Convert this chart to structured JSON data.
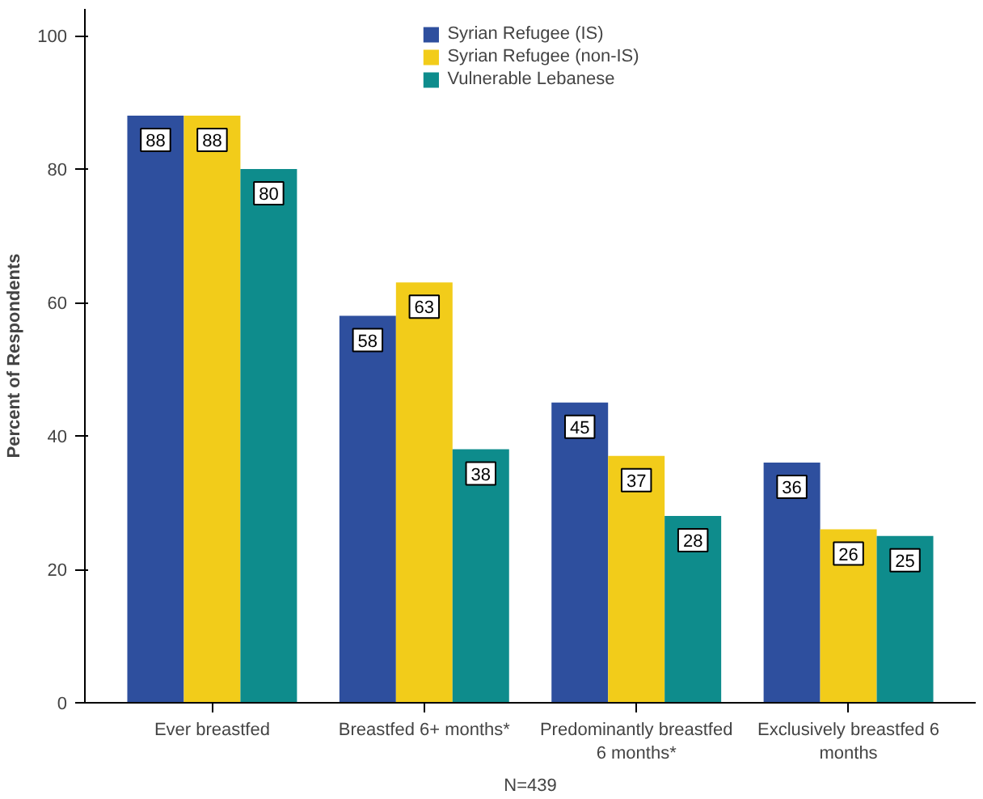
{
  "chart_data": {
    "type": "bar",
    "xlabel": "N=439",
    "ylabel": "Percent of Respondents",
    "categories": [
      "Ever breastfed",
      "Breastfed 6+ months*",
      "Predominantly breastfed 6 months*",
      "Exclusively breastfed 6 months"
    ],
    "series": [
      {
        "name": "Syrian Refugee (IS)",
        "color": "#2e4f9e",
        "values": [
          88,
          58,
          45,
          36
        ]
      },
      {
        "name": "Syrian Refugee (non-IS)",
        "color": "#f2cc1a",
        "values": [
          88,
          63,
          37,
          26
        ]
      },
      {
        "name": "Vulnerable Lebanese",
        "color": "#0e8c8c",
        "values": [
          80,
          38,
          28,
          25
        ]
      }
    ],
    "ylim": [
      0,
      104
    ],
    "yticks": [
      0,
      20,
      40,
      60,
      80,
      100
    ],
    "grid": false,
    "legend": "top",
    "data_labels": true
  }
}
